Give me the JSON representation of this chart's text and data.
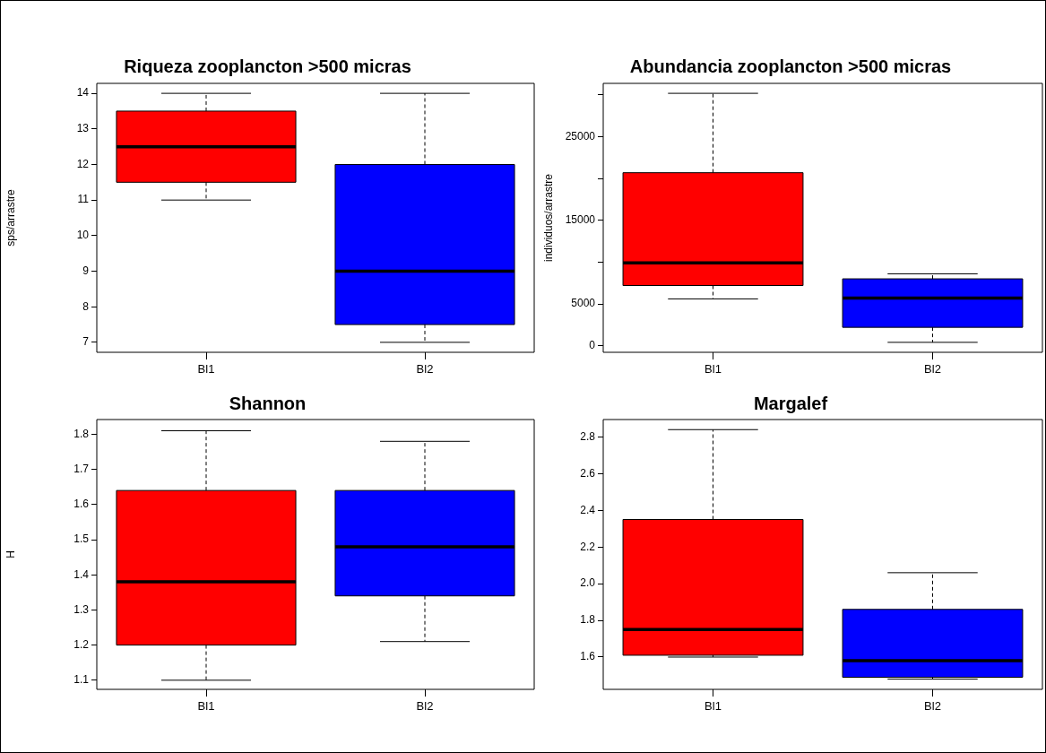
{
  "chart_data": [
    {
      "type": "box",
      "title": "Riqueza zooplancton >500 micras",
      "ylabel": "sps/arrastre",
      "categories": [
        "Bl1",
        "Bl2"
      ],
      "colors": [
        "#ff0000",
        "#0000ff"
      ],
      "boxes": [
        {
          "low": 11,
          "q1": 11.5,
          "median": 12.5,
          "q3": 13.5,
          "high": 14
        },
        {
          "low": 7,
          "q1": 7.5,
          "median": 9,
          "q3": 12,
          "high": 14
        }
      ],
      "ylim": [
        6.72,
        14.28
      ],
      "yticks": [
        7,
        8,
        9,
        10,
        11,
        12,
        13,
        14
      ]
    },
    {
      "type": "box",
      "title": "Abundancia zooplancton >500 micras",
      "ylabel": "individuos/arrastre",
      "categories": [
        "Bl1",
        "Bl2"
      ],
      "colors": [
        "#ff0000",
        "#0000ff"
      ],
      "boxes": [
        {
          "low": 5600,
          "q1": 7200,
          "median": 9900,
          "q3": 20700,
          "high": 30200
        },
        {
          "low": 400,
          "q1": 2200,
          "median": 5700,
          "q3": 8000,
          "high": 8600
        }
      ],
      "ylim": [
        -790,
        31390
      ],
      "yticks": [
        0,
        5000,
        {
          "value": 10000,
          "label": null
        },
        15000,
        {
          "value": 20000,
          "label": null
        },
        25000,
        {
          "value": 30000,
          "label": null
        }
      ]
    },
    {
      "type": "box",
      "title": "Shannon",
      "ylabel": "H",
      "categories": [
        "Bl1",
        "Bl2"
      ],
      "colors": [
        "#ff0000",
        "#0000ff"
      ],
      "boxes": [
        {
          "low": 1.1,
          "q1": 1.2,
          "median": 1.38,
          "q3": 1.64,
          "high": 1.81
        },
        {
          "low": 1.21,
          "q1": 1.34,
          "median": 1.48,
          "q3": 1.64,
          "high": 1.78
        }
      ],
      "ylim": [
        1.074,
        1.842
      ],
      "yticks": [
        1.1,
        1.2,
        1.3,
        1.4,
        1.5,
        1.6,
        1.7,
        1.8
      ]
    },
    {
      "type": "box",
      "title": "Margalef",
      "categories": [
        "Bl1",
        "Bl2"
      ],
      "colors": [
        "#ff0000",
        "#0000ff"
      ],
      "boxes": [
        {
          "low": 1.6,
          "q1": 1.61,
          "median": 1.75,
          "q3": 2.35,
          "high": 2.84
        },
        {
          "low": 1.48,
          "q1": 1.49,
          "median": 1.58,
          "q3": 1.86,
          "high": 2.06
        }
      ],
      "ylim": [
        1.424,
        2.895
      ],
      "yticks": [
        1.6,
        1.8,
        {
          "value": 2.0,
          "label": "2.0"
        },
        2.2,
        2.4,
        2.6,
        2.8
      ]
    }
  ]
}
